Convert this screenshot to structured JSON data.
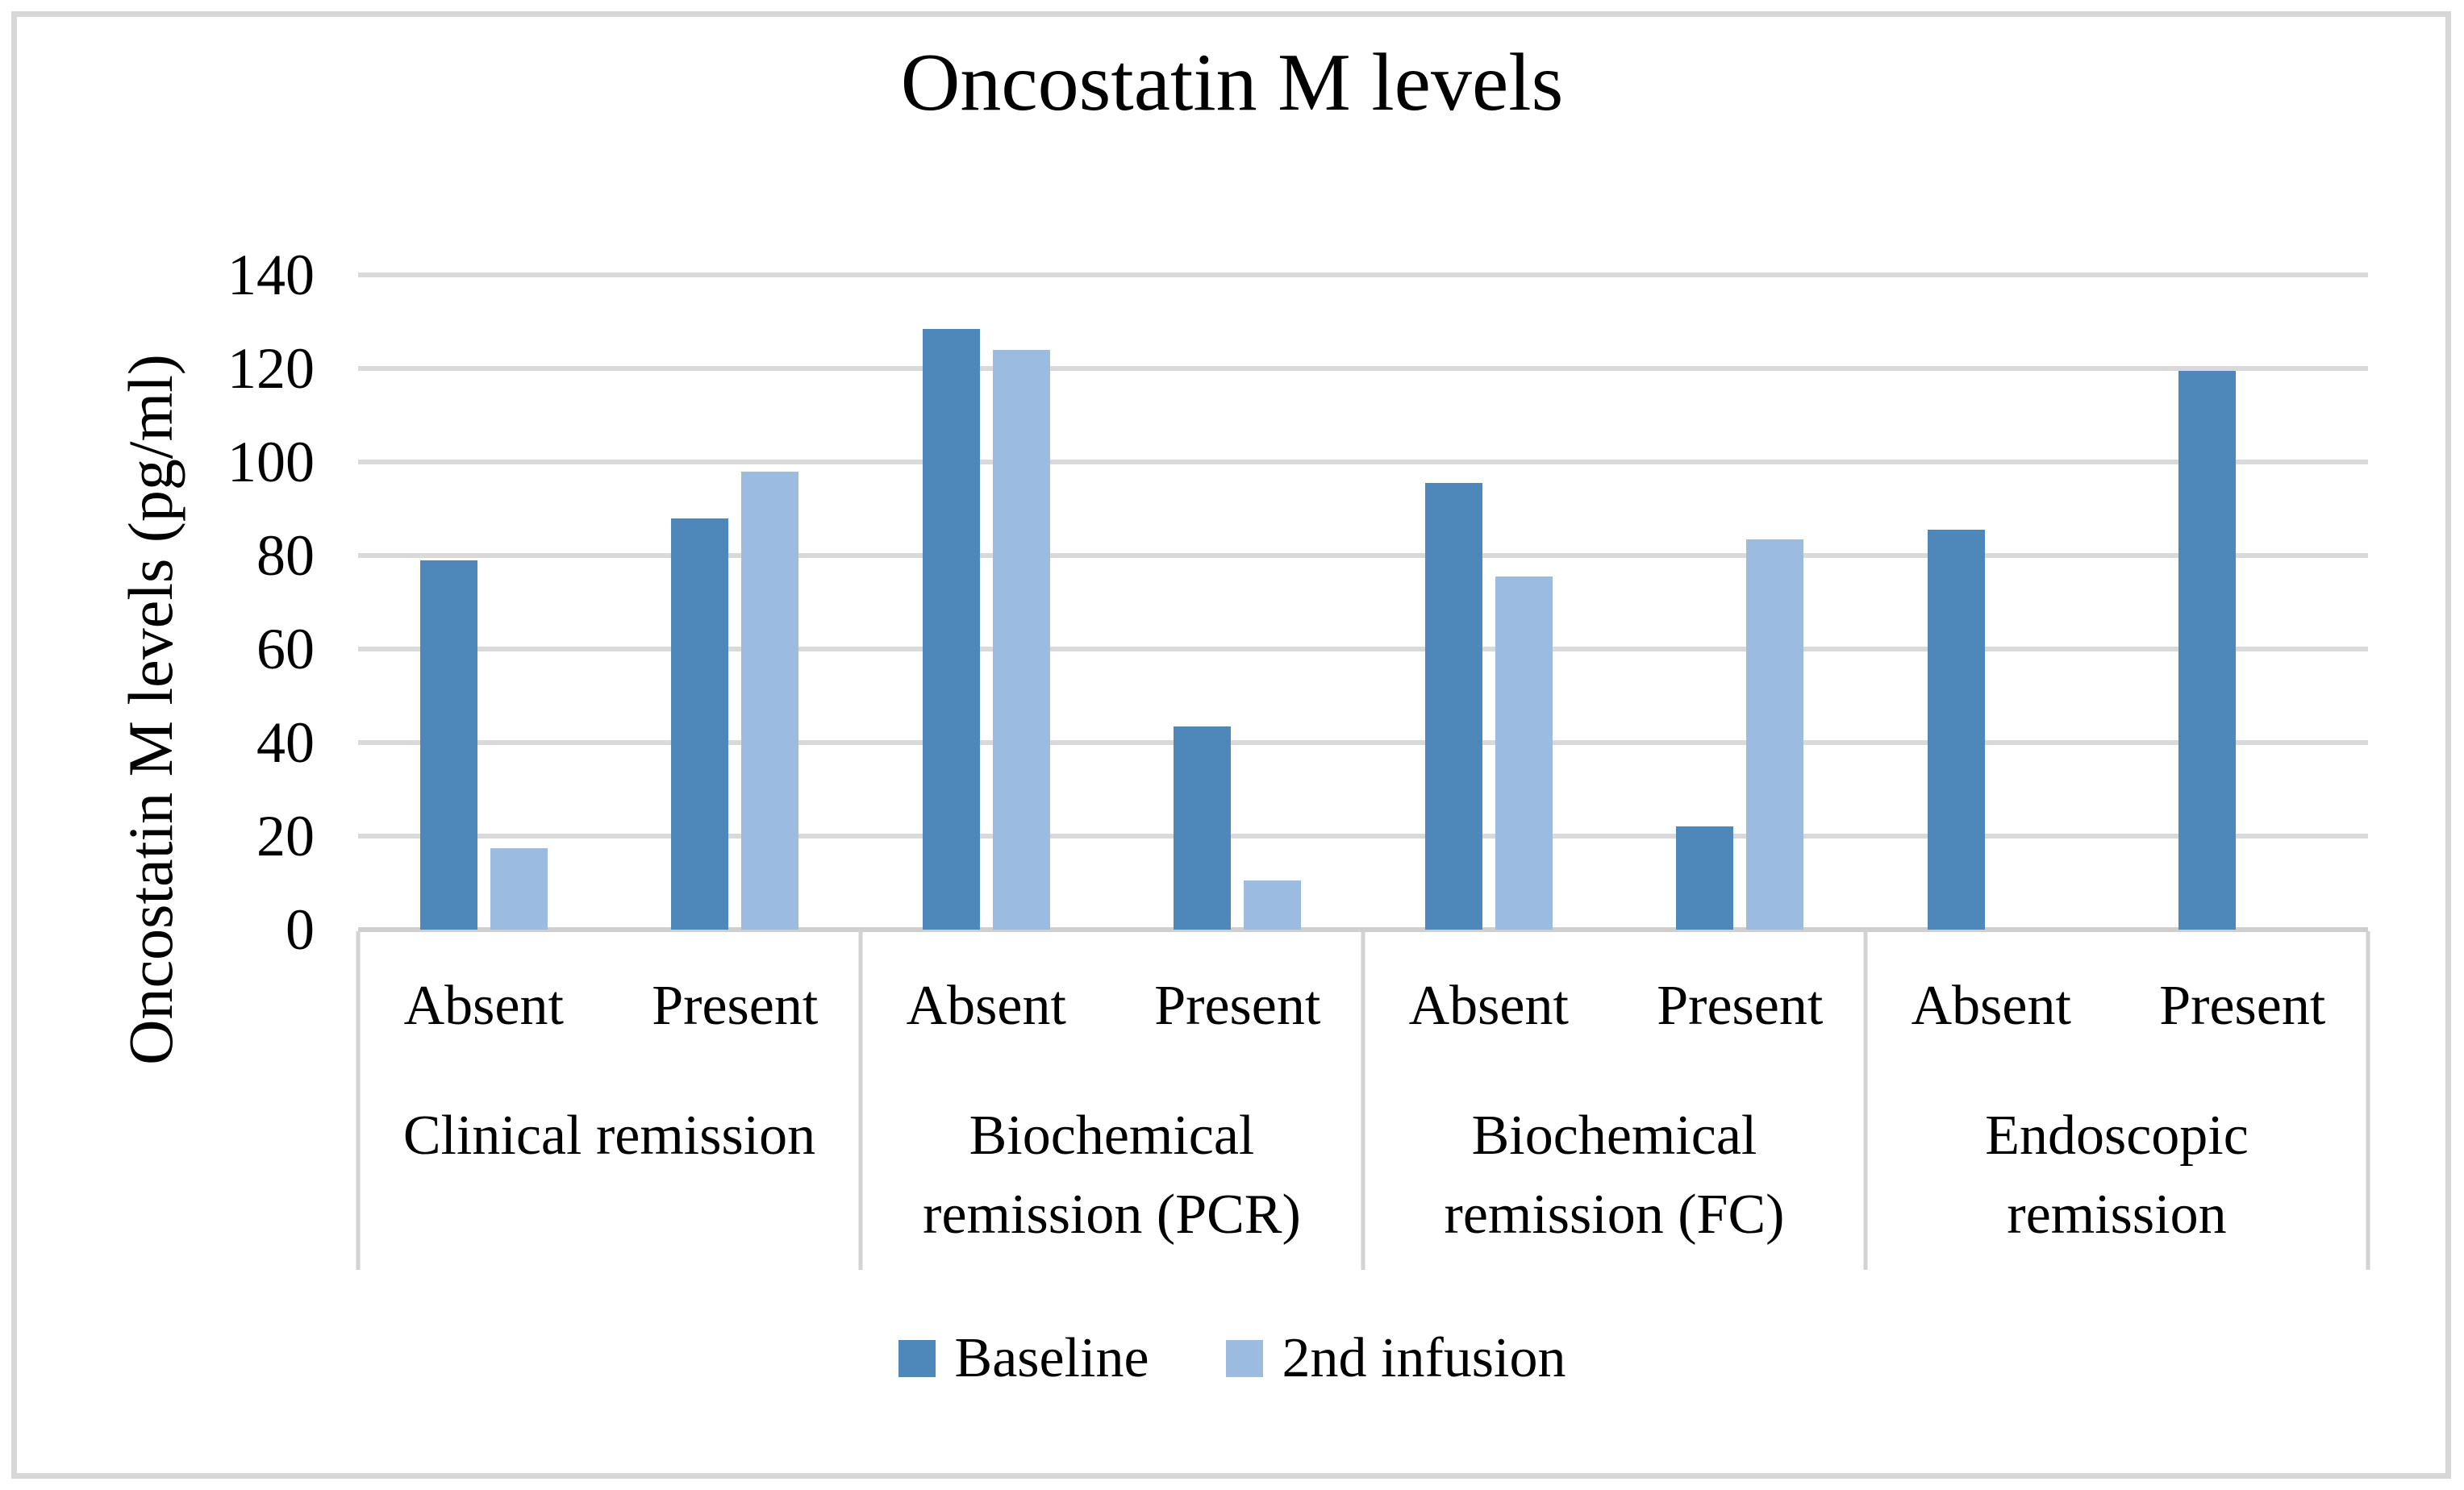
{
  "title": "Oncostatin M levels",
  "y_axis": {
    "label": "Oncostatin M levels (pg/ml)",
    "ticks": [
      0,
      20,
      40,
      60,
      80,
      100,
      120,
      140
    ],
    "max": 140
  },
  "colors": {
    "baseline": "#4E87B9",
    "second_infusion": "#9BBCE0",
    "gridline": "#D9D9D9",
    "axis_line": "#CFCFCF",
    "separator": "#D3D3D3",
    "frame_border": "#D7D7D7",
    "text": "#000000",
    "background": "#FFFFFF"
  },
  "legend": {
    "items": [
      {
        "label": "Baseline",
        "color_key": "baseline"
      },
      {
        "label": "2nd infusion",
        "color_key": "second_infusion"
      }
    ]
  },
  "chart_data": {
    "type": "bar",
    "title": "Oncostatin M levels",
    "xlabel": "",
    "ylabel": "Oncostatin M levels (pg/ml)",
    "ylim": [
      0,
      140
    ],
    "ytick_step": 20,
    "grid": true,
    "legend_position": "bottom",
    "groups": [
      {
        "label": "Clinical remission",
        "label_lines": [
          "Clinical remission"
        ],
        "categories": [
          "Absent",
          "Present"
        ]
      },
      {
        "label": "Biochemical remission (PCR)",
        "label_lines": [
          "Biochemical",
          "remission (PCR)"
        ],
        "categories": [
          "Absent",
          "Present"
        ]
      },
      {
        "label": "Biochemical remission (FC)",
        "label_lines": [
          "Biochemical",
          "remission (FC)"
        ],
        "categories": [
          "Absent",
          "Present"
        ]
      },
      {
        "label": "Endoscopic remission",
        "label_lines": [
          "Endoscopic",
          "remission"
        ],
        "categories": [
          "Absent",
          "Present"
        ]
      }
    ],
    "categories": [
      "Absent",
      "Present",
      "Absent",
      "Present",
      "Absent",
      "Present",
      "Absent",
      "Present"
    ],
    "series": [
      {
        "name": "Baseline",
        "color_key": "baseline",
        "values": [
          79,
          88,
          128.5,
          43.5,
          95.5,
          22,
          85.5,
          119.5
        ]
      },
      {
        "name": "2nd infusion",
        "color_key": "second_infusion",
        "values": [
          17.5,
          98,
          124,
          10.5,
          75.5,
          83.5,
          null,
          null
        ]
      }
    ]
  }
}
